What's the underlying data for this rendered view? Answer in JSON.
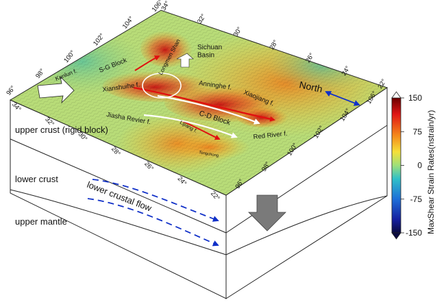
{
  "map": {
    "latitude_ticks": [
      "34°",
      "32°",
      "30°",
      "28°",
      "26°",
      "24°",
      "22°"
    ],
    "longitude_ticks": [
      "96°",
      "98°",
      "100°",
      "102°",
      "104°",
      "106°"
    ],
    "back_lat_ticks": [
      "34°",
      "32°",
      "30°",
      "28°",
      "26°",
      "24°",
      "22°"
    ],
    "back_lon_ticks": [
      "96°",
      "98°",
      "100°",
      "102°",
      "104°",
      "106°"
    ],
    "labels": {
      "kunlun": "Kunlun f.",
      "sg_block": "S-G Block",
      "longmenshan": "Longmen Shan",
      "sichuan_basin": "Sichuan\nBasin",
      "xianshuihe": "Xianshuihe f.",
      "anninghe": "Anninghe f.",
      "xiaojiang": "Xiaojiang f.",
      "jiasha": "Jiasha Revier f.",
      "cd_block": "C-D Block",
      "lijiang": "Lijiang f.",
      "red_river": "Red River f.",
      "tengchong": "Tengchong"
    },
    "north_label": "North"
  },
  "layers": {
    "upper_crust": "upper crust (rigid block)",
    "lower_crust": "lower crust",
    "lower_crustal_flow": "lower crustal flow",
    "upper_mantle": "upper mantle"
  },
  "colorbar": {
    "title": "MaxShear Strain Rates(nstrain/yr)",
    "ticks": [
      "150",
      "75",
      "0",
      "-75",
      "-150"
    ]
  },
  "colors": {
    "red_arrow": "#e01010",
    "blue_accent": "#1030c8",
    "white_arrow": "#ffffff",
    "down_arrow": "#7a7a7a"
  }
}
